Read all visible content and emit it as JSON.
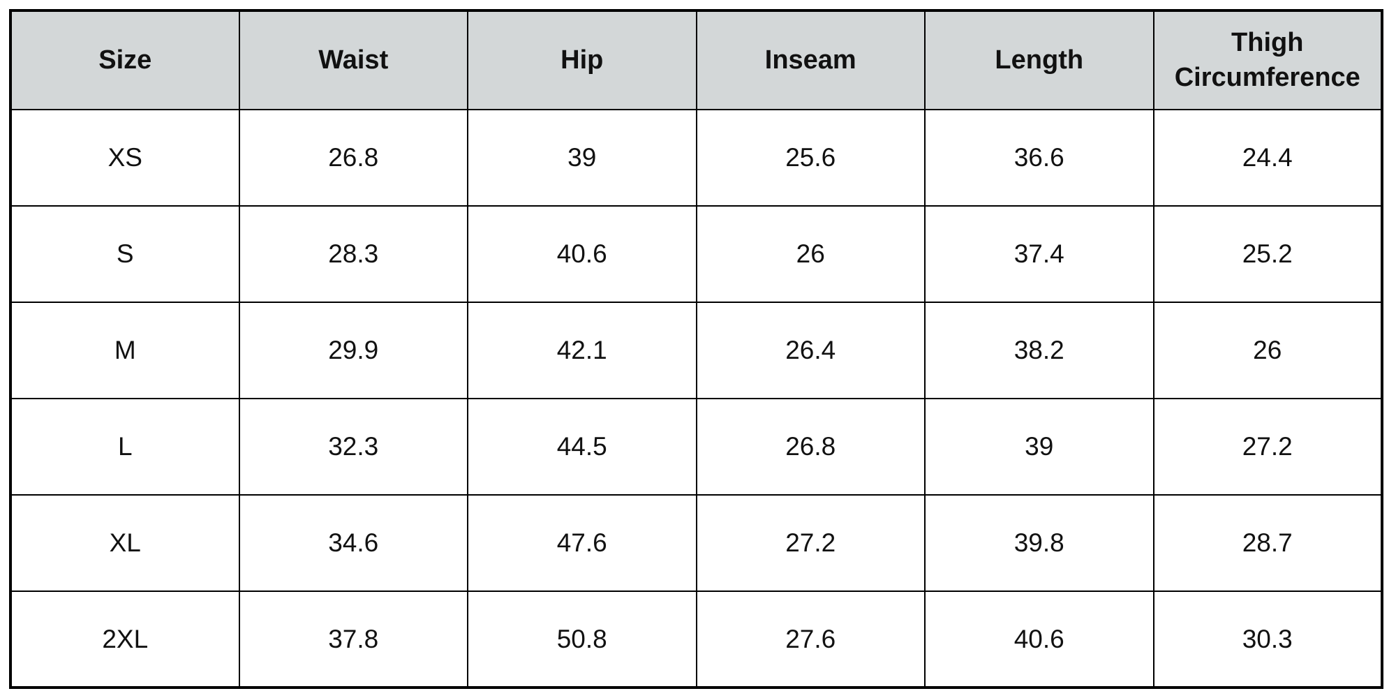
{
  "colors": {
    "header_bg": "#d3d7d8",
    "cell_bg": "#ffffff",
    "border": "#000000",
    "text": "#111111"
  },
  "table": {
    "headers": [
      "Size",
      "Waist",
      "Hip",
      "Inseam",
      "Length",
      "Thigh Circumference"
    ],
    "rows": [
      [
        "XS",
        "26.8",
        "39",
        "25.6",
        "36.6",
        "24.4"
      ],
      [
        "S",
        "28.3",
        "40.6",
        "26",
        "37.4",
        "25.2"
      ],
      [
        "M",
        "29.9",
        "42.1",
        "26.4",
        "38.2",
        "26"
      ],
      [
        "L",
        "32.3",
        "44.5",
        "26.8",
        "39",
        "27.2"
      ],
      [
        "XL",
        "34.6",
        "47.6",
        "27.2",
        "39.8",
        "28.7"
      ],
      [
        "2XL",
        "37.8",
        "50.8",
        "27.6",
        "40.6",
        "30.3"
      ]
    ]
  }
}
